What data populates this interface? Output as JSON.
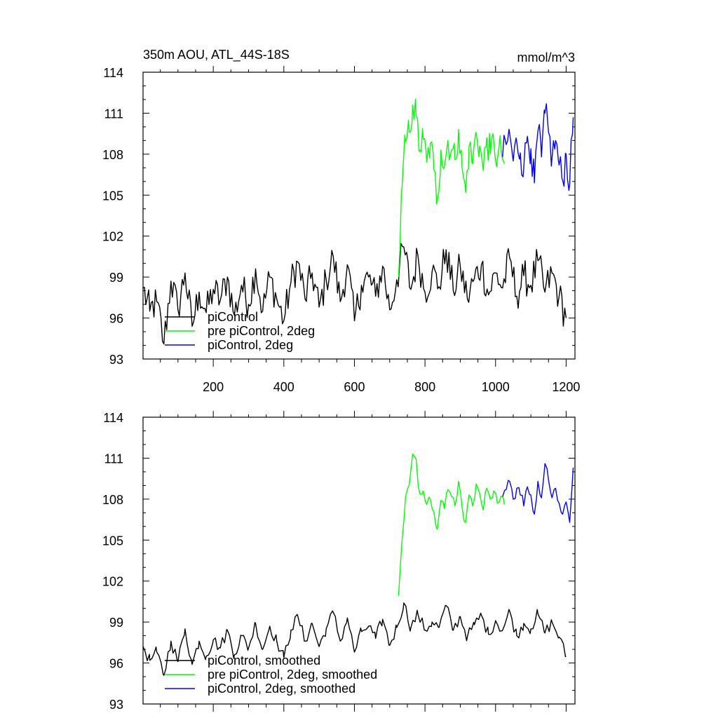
{
  "figure": {
    "title_left": "350m AOU, ATL_44S-18S",
    "title_right": "mmol/m^3"
  },
  "chart_data": [
    {
      "type": "line",
      "title": "350m AOU, ATL_44S-18S",
      "units": "mmol/m^3",
      "xlim": [
        1,
        1225
      ],
      "ylim": [
        93,
        114
      ],
      "x_ticks": [
        200,
        400,
        600,
        800,
        1000,
        1200
      ],
      "x_tick_labels": [
        "200",
        "400",
        "600",
        "800",
        "1000",
        "1200"
      ],
      "y_ticks": [
        93,
        96,
        99,
        102,
        105,
        108,
        111,
        114
      ],
      "y_tick_labels": [
        "93",
        "96",
        "99",
        "102",
        "105",
        "108",
        "111",
        "114"
      ],
      "legend_position": "bottom-left",
      "series": [
        {
          "name": "piControl",
          "color": "#000000",
          "x": [
            1,
            20,
            40,
            60,
            80,
            100,
            120,
            140,
            160,
            180,
            200,
            220,
            240,
            260,
            280,
            300,
            320,
            340,
            360,
            380,
            400,
            420,
            440,
            460,
            480,
            500,
            520,
            540,
            560,
            580,
            600,
            620,
            640,
            660,
            680,
            700,
            720,
            740,
            760,
            780,
            800,
            820,
            840,
            860,
            880,
            900,
            920,
            940,
            960,
            980,
            1000,
            1020,
            1040,
            1060,
            1080,
            1100,
            1120,
            1140,
            1160,
            1180,
            1200
          ],
          "y": [
            98.2,
            96.5,
            97.2,
            94.1,
            98.7,
            96.6,
            99.3,
            95.4,
            97.9,
            96.4,
            98.1,
            97.3,
            99.0,
            96.2,
            98.4,
            97.0,
            99.6,
            96.5,
            99.0,
            97.4,
            95.8,
            98.6,
            100.1,
            97.4,
            99.3,
            96.8,
            98.8,
            100.5,
            97.2,
            99.9,
            95.8,
            98.4,
            99.0,
            97.6,
            99.8,
            96.6,
            98.8,
            101.2,
            98.1,
            100.6,
            97.9,
            99.4,
            98.3,
            101.0,
            98.0,
            99.8,
            97.4,
            98.9,
            99.9,
            97.7,
            99.3,
            98.2,
            100.4,
            97.6,
            99.1,
            98.4,
            100.2,
            97.9,
            99.3,
            97.6,
            96.0
          ]
        },
        {
          "name": "pre piControl, 2deg",
          "color": "#00ff00",
          "x": [
            725,
            735,
            745,
            755,
            765,
            775,
            785,
            795,
            805,
            815,
            825,
            835,
            845,
            855,
            865,
            875,
            885,
            895,
            905,
            915,
            925,
            935,
            945,
            955,
            965,
            975,
            985,
            995,
            1005,
            1015,
            1025
          ],
          "y": [
            99.0,
            105.6,
            108.9,
            109.6,
            111.6,
            110.8,
            108.3,
            109.1,
            107.4,
            108.8,
            106.9,
            104.6,
            108.3,
            107.1,
            109.0,
            108.3,
            107.6,
            109.8,
            107.0,
            105.2,
            108.6,
            107.3,
            109.6,
            108.6,
            106.8,
            109.2,
            108.0,
            108.9,
            107.6,
            108.4,
            107.3
          ]
        },
        {
          "name": "piControl, 2deg",
          "color": "#0000ff",
          "x": [
            1020,
            1030,
            1040,
            1050,
            1060,
            1070,
            1080,
            1090,
            1100,
            1110,
            1120,
            1130,
            1140,
            1150,
            1160,
            1170,
            1180,
            1190,
            1200,
            1210,
            1220
          ],
          "y": [
            107.8,
            108.7,
            109.5,
            107.5,
            108.9,
            108.1,
            107.0,
            109.3,
            108.4,
            105.9,
            109.7,
            107.8,
            111.0,
            109.6,
            107.7,
            109.0,
            107.2,
            106.1,
            108.0,
            105.8,
            110.7
          ]
        }
      ]
    },
    {
      "type": "line",
      "title": "",
      "xlim": [
        1,
        1225
      ],
      "ylim": [
        93,
        114
      ],
      "y_ticks": [
        93,
        96,
        99,
        102,
        105,
        108,
        111,
        114
      ],
      "y_tick_labels": [
        "93",
        "96",
        "99",
        "102",
        "105",
        "108",
        "111",
        "114"
      ],
      "legend_position": "bottom-left",
      "series": [
        {
          "name": "piControl, smoothed",
          "color": "#000000",
          "x": [
            1,
            20,
            40,
            60,
            80,
            100,
            120,
            140,
            160,
            180,
            200,
            220,
            240,
            260,
            280,
            300,
            320,
            340,
            360,
            380,
            400,
            420,
            440,
            460,
            480,
            500,
            520,
            540,
            560,
            580,
            600,
            620,
            640,
            660,
            680,
            700,
            720,
            740,
            760,
            780,
            800,
            820,
            840,
            860,
            880,
            900,
            920,
            940,
            960,
            980,
            1000,
            1020,
            1040,
            1060,
            1080,
            1100,
            1120,
            1140,
            1160,
            1180,
            1200
          ],
          "y": [
            97.2,
            96.2,
            96.8,
            95.1,
            97.6,
            96.1,
            98.5,
            95.9,
            97.6,
            96.5,
            97.7,
            97.1,
            98.4,
            96.6,
            98.0,
            97.1,
            98.9,
            97.0,
            98.7,
            97.6,
            96.4,
            98.4,
            99.4,
            97.6,
            98.9,
            97.2,
            98.5,
            99.7,
            97.6,
            99.3,
            96.8,
            98.3,
            98.7,
            97.8,
            99.2,
            97.3,
            98.6,
            100.4,
            98.6,
            99.6,
            98.4,
            99.0,
            98.6,
            100.2,
            98.4,
            99.4,
            97.9,
            98.8,
            99.5,
            98.1,
            99.1,
            98.4,
            99.8,
            98.0,
            98.9,
            98.5,
            99.6,
            98.2,
            99.0,
            97.9,
            96.5
          ]
        },
        {
          "name": "pre piControl, 2deg, smoothed",
          "color": "#00ff00",
          "x": [
            725,
            735,
            745,
            755,
            765,
            775,
            785,
            795,
            805,
            815,
            825,
            835,
            845,
            855,
            865,
            875,
            885,
            895,
            905,
            915,
            925,
            935,
            945,
            955,
            965,
            975,
            985,
            995,
            1005,
            1015,
            1025
          ],
          "y": [
            100.9,
            105.0,
            108.2,
            109.0,
            111.3,
            110.9,
            108.4,
            108.6,
            107.6,
            108.0,
            107.1,
            105.8,
            107.9,
            107.3,
            108.7,
            108.2,
            107.5,
            109.3,
            107.4,
            106.3,
            108.3,
            107.5,
            109.1,
            108.4,
            107.2,
            108.8,
            108.0,
            108.6,
            107.7,
            108.2,
            107.6
          ]
        },
        {
          "name": "piControl, 2deg, smoothed",
          "color": "#0000ff",
          "x": [
            1020,
            1030,
            1040,
            1050,
            1060,
            1070,
            1080,
            1090,
            1100,
            1110,
            1120,
            1130,
            1140,
            1150,
            1160,
            1170,
            1180,
            1190,
            1200,
            1210,
            1220
          ],
          "y": [
            108.2,
            108.7,
            109.3,
            108.0,
            108.8,
            108.3,
            107.5,
            108.9,
            108.3,
            106.9,
            109.3,
            108.1,
            110.6,
            109.4,
            108.1,
            108.8,
            107.7,
            106.9,
            107.8,
            106.3,
            110.3
          ]
        }
      ]
    }
  ]
}
